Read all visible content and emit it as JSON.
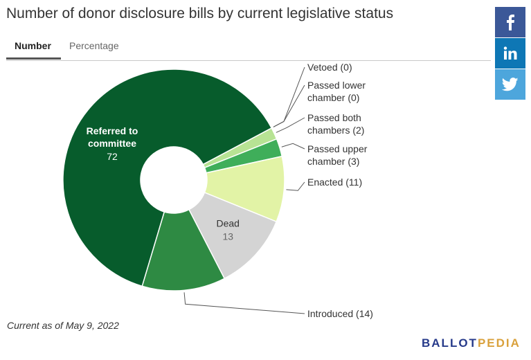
{
  "title": "Number of donor disclosure bills by current legislative status",
  "tabs": [
    {
      "label": "Number",
      "active": true
    },
    {
      "label": "Percentage",
      "active": false
    }
  ],
  "share": {
    "facebook_icon": "facebook-icon",
    "linkedin_icon": "linkedin-icon",
    "twitter_icon": "twitter-icon",
    "colors": {
      "facebook": "#3b5898",
      "linkedin": "#0e77b5",
      "twitter": "#4da6dc"
    }
  },
  "chart_data": {
    "type": "pie",
    "donut": true,
    "series": [
      {
        "name": "Vetoed",
        "value": 0,
        "color": "#bde38e",
        "label": "Vetoed (0)"
      },
      {
        "name": "Passed lower chamber",
        "value": 0,
        "color": "#9fd37c",
        "label_lines": [
          "Passed lower",
          "chamber (0)"
        ]
      },
      {
        "name": "Passed both chambers",
        "value": 2,
        "color": "#b7e394",
        "label_lines": [
          "Passed both",
          "chambers (2)"
        ]
      },
      {
        "name": "Passed upper chamber",
        "value": 3,
        "color": "#3fae5a",
        "label_lines": [
          "Passed upper",
          "chamber (3)"
        ]
      },
      {
        "name": "Enacted",
        "value": 11,
        "color": "#e2f3a6",
        "label": "Enacted (11)"
      },
      {
        "name": "Dead",
        "value": 13,
        "color": "#d4d4d4",
        "inner_label": "Dead",
        "inner_value": "13"
      },
      {
        "name": "Introduced",
        "value": 14,
        "color": "#2e8a43",
        "label": "Introduced (14)"
      },
      {
        "name": "Referred to committee",
        "value": 72,
        "color": "#075c2c",
        "inner_label_lines": [
          "Referred to",
          "committee"
        ],
        "inner_value": "72"
      }
    ]
  },
  "footnote": "Current as of May 9, 2022",
  "logo": {
    "part1": "BALLOT",
    "part2": "PEDIA"
  }
}
